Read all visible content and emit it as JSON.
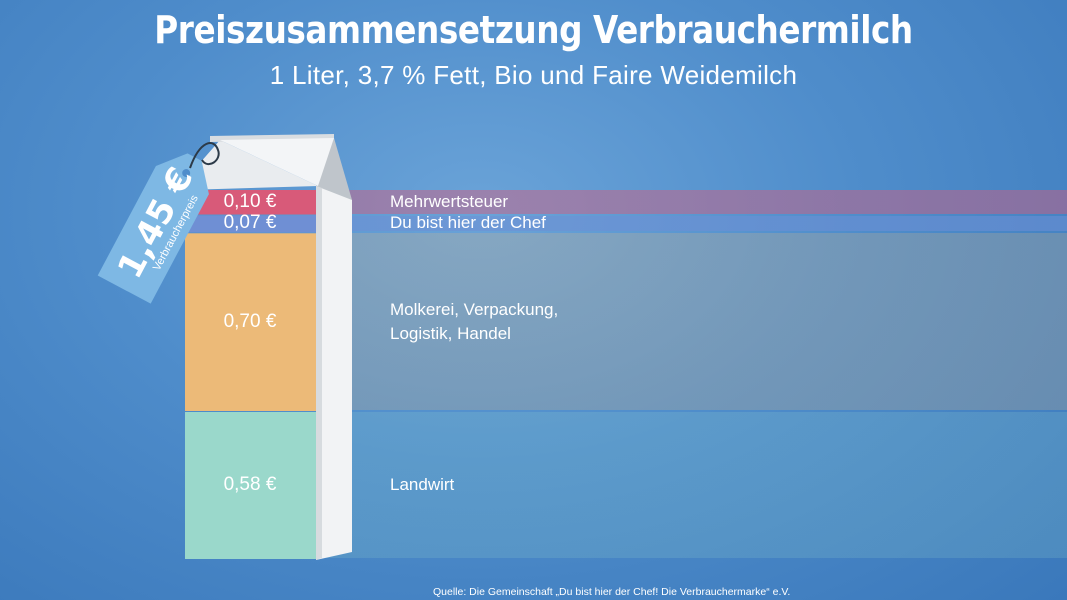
{
  "chart_data": {
    "type": "bar",
    "title": "Preiszusammensetzung Verbrauchermilch",
    "subtitle": "1 Liter, 3,7 % Fett, Bio und Faire Weidemilch",
    "total": {
      "value": 1.45,
      "label": "1,45 €",
      "caption": "Verbraucherpreis"
    },
    "segments": [
      {
        "label": "Mehrwertsteuer",
        "value": 0.1,
        "value_label": "0,10 €",
        "color": "#d85a79"
      },
      {
        "label": "Du bist hier der Chef",
        "value": 0.07,
        "value_label": "0,07 €",
        "color": "#6f8fd4"
      },
      {
        "label": "Molkerei, Verpackung,\nLogistik, Handel",
        "value": 0.7,
        "value_label": "0,70 €",
        "color": "#ecba78"
      },
      {
        "label": "Landwirt",
        "value": 0.58,
        "value_label": "0,58 €",
        "color": "#9ad8cb"
      }
    ],
    "source": "Quelle: Die Gemeinschaft „Du bist hier der Chef! Die Verbrauchermarke“ e.V."
  }
}
